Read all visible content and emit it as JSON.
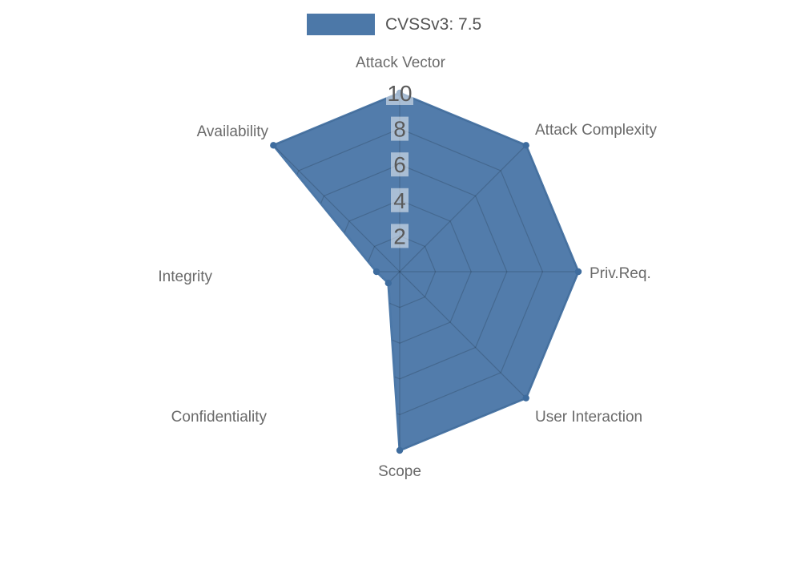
{
  "legend": {
    "label": "CVSSv3: 7.5",
    "swatch_color": "#4C78A8"
  },
  "chart_data": {
    "type": "radar",
    "title": "CVSSv3: 7.5",
    "categories": [
      "Attack Vector",
      "Attack Complexity",
      "Priv.Req.",
      "User Interaction",
      "Scope",
      "Confidentiality",
      "Integrity",
      "Availability"
    ],
    "series": [
      {
        "name": "CVSSv3: 7.5",
        "values": [
          10,
          10,
          10,
          10,
          10,
          0.9,
          1.3,
          10
        ]
      }
    ],
    "rlim": [
      0,
      10
    ],
    "ticks": [
      2,
      4,
      6,
      8,
      10
    ],
    "grid": "spider-web (octagonal rings + spokes), visible only inside filled polygon",
    "legend_position": "top-center",
    "colors": {
      "fill": "#4C78A8",
      "stroke": "#4C78A8",
      "marker": "#3E6C9E",
      "grid_line": "rgba(0,0,0,0.16)",
      "tick_backdrop": "rgba(255,255,255,0.5)",
      "tick_text": "#5a5a5a",
      "label_text": "#6a6a6a"
    }
  }
}
